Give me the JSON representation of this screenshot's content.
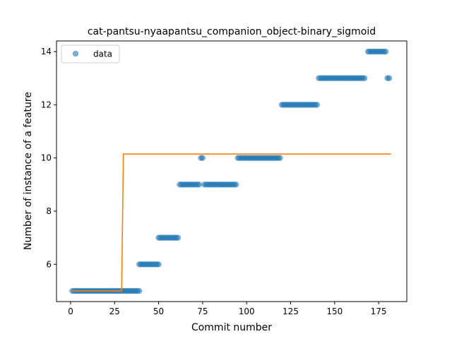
{
  "chart_data": {
    "type": "scatter",
    "title": "cat-pantsu-nyaapantsu_companion_object-binary_sigmoid",
    "xlabel": "Commit number",
    "ylabel": "Number of instance of a feature",
    "xlim": [
      -8,
      191
    ],
    "ylim": [
      4.6,
      14.4
    ],
    "xticks": [
      0,
      25,
      50,
      75,
      100,
      125,
      150,
      175
    ],
    "yticks": [
      6,
      8,
      10,
      12,
      14
    ],
    "grid": false,
    "legend": {
      "placement": "top-left",
      "entries": [
        "data"
      ]
    },
    "colors": {
      "data": "#1f77b4",
      "fit": "#ff7f0e"
    },
    "series": [
      {
        "name": "data",
        "kind": "scatter",
        "segments": [
          {
            "x_start": 1,
            "x_end": 39,
            "y": 5
          },
          {
            "x_start": 39,
            "x_end": 50,
            "y": 6
          },
          {
            "x_start": 50,
            "x_end": 61,
            "y": 7
          },
          {
            "x_start": 62,
            "x_end": 73,
            "y": 9
          },
          {
            "x_start": 74,
            "x_end": 75,
            "y": 10
          },
          {
            "x_start": 76,
            "x_end": 94,
            "y": 9
          },
          {
            "x_start": 95,
            "x_end": 119,
            "y": 10
          },
          {
            "x_start": 120,
            "x_end": 140,
            "y": 12
          },
          {
            "x_start": 141,
            "x_end": 167,
            "y": 13
          },
          {
            "x_start": 169,
            "x_end": 179,
            "y": 14
          },
          {
            "x_start": 180,
            "x_end": 181,
            "y": 13
          }
        ]
      },
      {
        "kind": "line",
        "x": [
          1,
          29,
          30,
          182
        ],
        "y": [
          5.0,
          5.0,
          10.15,
          10.15
        ]
      }
    ]
  }
}
